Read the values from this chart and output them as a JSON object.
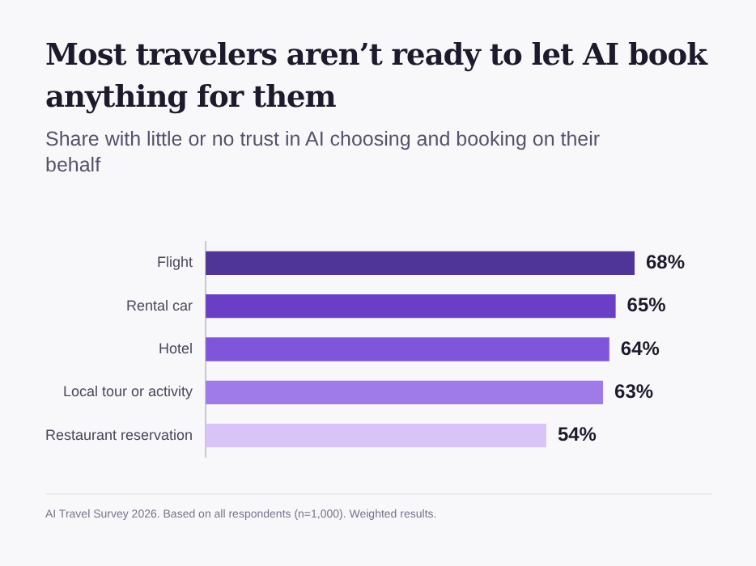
{
  "chart_data": {
    "type": "bar",
    "orientation": "horizontal",
    "title": "Most travelers aren’t ready to let AI book anything for them",
    "subtitle": "Share with little or no trust in AI choosing and booking on their behalf",
    "categories": [
      "Flight",
      "Rental car",
      "Hotel",
      "Local tour or activity",
      "Restaurant reservation"
    ],
    "values": [
      68,
      65,
      64,
      63,
      54
    ],
    "colors": [
      "#4f3597",
      "#6a3fc6",
      "#7f56d9",
      "#9e7be8",
      "#d8c4f7"
    ],
    "value_labels": [
      "68%",
      "65%",
      "64%",
      "63%",
      "54%"
    ],
    "data_labels": true,
    "legend": false,
    "tick_labels": "y",
    "annotations": [
      "AI Travel Survey 2026. Based on all respondents (n=1,000). Weighted results."
    ]
  }
}
